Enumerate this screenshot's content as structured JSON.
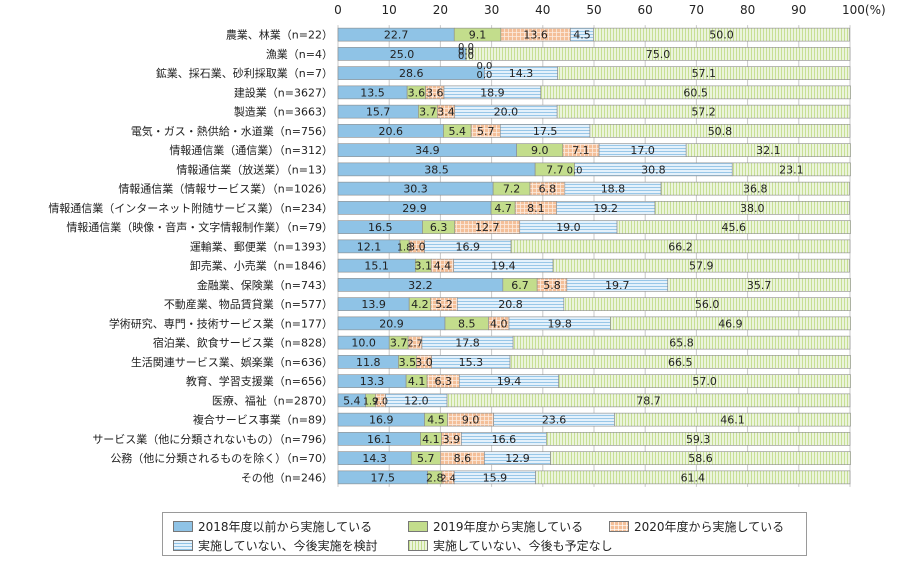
{
  "colors": {
    "s0": "#8fc3e6",
    "s1": "#c3dd8c",
    "s2": "#f4bf98",
    "s3": "#e4f1fb",
    "s4": "#ebf4dc",
    "grid": "#c8c8c8",
    "stroke": "#8a8a8a"
  },
  "chart_data": {
    "type": "bar",
    "orientation": "horizontal",
    "stacked": true,
    "unit_label": "100(%)",
    "xlim": [
      0,
      100
    ],
    "x_ticks": [
      "0",
      "10",
      "20",
      "30",
      "40",
      "50",
      "60",
      "70",
      "80",
      "90"
    ],
    "grid": true,
    "legend_position": "bottom",
    "categories": [
      "農業、林業（n=22）",
      "漁業（n=4）",
      "鉱業、採石業、砂利採取業（n=7）",
      "建設業（n=3627）",
      "製造業（n=3663）",
      "電気・ガス・熱供給・水道業（n=756）",
      "情報通信業（通信業）（n=312）",
      "情報通信業（放送業）（n=13）",
      "情報通信業（情報サービス業）（n=1026）",
      "情報通信業（インターネット附随サービス業）（n=234）",
      "情報通信業（映像・音声・文字情報制作業）（n=79）",
      "運輸業、郵便業（n=1393）",
      "卸売業、小売業（n=1846）",
      "金融業、保険業（n=743）",
      "不動産業、物品賃貸業（n=577）",
      "学術研究、専門・技術サービス業（n=177）",
      "宿泊業、飲食サービス業（n=828）",
      "生活関連サービス業、娯楽業（n=636）",
      "教育、学習支援業（n=656）",
      "医療、福祉（n=2870）",
      "複合サービス事業（n=89）",
      "サービス業（他に分類されないもの）（n=796）",
      "公務（他に分類されるものを除く）（n=70）",
      "その他（n=246）"
    ],
    "series": [
      {
        "name": "2018年度以前から実施している",
        "pattern": "solid",
        "values": [
          22.7,
          25.0,
          28.6,
          13.5,
          15.7,
          20.6,
          34.9,
          38.5,
          30.3,
          29.9,
          16.5,
          12.1,
          15.1,
          32.2,
          13.9,
          20.9,
          10.0,
          11.8,
          13.3,
          5.4,
          16.9,
          16.1,
          14.3,
          17.5
        ]
      },
      {
        "name": "2019年度から実施している",
        "pattern": "solid",
        "values": [
          9.1,
          0.0,
          0.0,
          3.6,
          3.7,
          5.4,
          9.0,
          7.7,
          7.2,
          4.7,
          6.3,
          1.8,
          3.1,
          6.7,
          4.2,
          8.5,
          3.7,
          3.5,
          4.1,
          1.9,
          4.5,
          4.1,
          5.7,
          2.8
        ]
      },
      {
        "name": "2020年度から実施している",
        "pattern": "grid",
        "values": [
          13.6,
          0.0,
          0.0,
          3.6,
          3.4,
          5.7,
          7.1,
          0.0,
          6.8,
          8.1,
          12.7,
          3.0,
          4.4,
          5.8,
          5.2,
          4.0,
          2.7,
          3.0,
          6.3,
          2.0,
          9.0,
          3.9,
          8.6,
          2.4
        ]
      },
      {
        "name": "実施していない、今後実施を検討",
        "pattern": "hlines",
        "values": [
          4.5,
          0.0,
          14.3,
          18.9,
          20.0,
          17.5,
          17.0,
          30.8,
          18.8,
          19.2,
          19.0,
          16.9,
          19.4,
          19.7,
          20.8,
          19.8,
          17.8,
          15.3,
          19.4,
          12.0,
          23.6,
          16.6,
          12.9,
          15.9
        ]
      },
      {
        "name": "実施していない、今後も予定なし",
        "pattern": "vlines",
        "values": [
          50.0,
          75.0,
          57.1,
          60.5,
          57.2,
          50.8,
          32.1,
          23.1,
          36.8,
          38.0,
          45.6,
          66.2,
          57.9,
          35.7,
          56.0,
          46.9,
          65.8,
          66.5,
          57.0,
          78.7,
          46.1,
          59.3,
          58.6,
          61.4
        ]
      }
    ],
    "data_labels": [
      [
        "22.7",
        "9.1",
        "13.6",
        "4.5",
        "50.0"
      ],
      [
        "25.0",
        "0.0",
        "0.0",
        "0.0",
        "75.0"
      ],
      [
        "28.6",
        "0.0",
        "0.0",
        "14.3",
        "57.1"
      ],
      [
        "13.5",
        "3.6",
        "3.6",
        "18.9",
        "60.5"
      ],
      [
        "15.7",
        "3.7",
        "3.4",
        "20.0",
        "57.2"
      ],
      [
        "20.6",
        "5.4",
        "5.7",
        "17.5",
        "50.8"
      ],
      [
        "34.9",
        "9.0",
        "7.1",
        "17.0",
        "32.1"
      ],
      [
        "38.5",
        "7.7",
        "0.0",
        "30.8",
        "23.1"
      ],
      [
        "30.3",
        "7.2",
        "6.8",
        "18.8",
        "36.8"
      ],
      [
        "29.9",
        "4.7",
        "8.1",
        "19.2",
        "38.0"
      ],
      [
        "16.5",
        "6.3",
        "12.7",
        "19.0",
        "45.6"
      ],
      [
        "12.1",
        "1.8",
        "3.0",
        "16.9",
        "66.2"
      ],
      [
        "15.1",
        "3.1",
        "4.4",
        "19.4",
        "57.9"
      ],
      [
        "32.2",
        "6.7",
        "5.8",
        "19.7",
        "35.7"
      ],
      [
        "13.9",
        "4.2",
        "5.2",
        "20.8",
        "56.0"
      ],
      [
        "20.9",
        "8.5",
        "4.0",
        "19.8",
        "46.9"
      ],
      [
        "10.0",
        "3.7",
        "2.7",
        "17.8",
        "65.8"
      ],
      [
        "11.8",
        "3.5",
        "3.0",
        "15.3",
        "66.5"
      ],
      [
        "13.3",
        "4.1",
        "6.3",
        "19.4",
        "57.0"
      ],
      [
        "5.4",
        "1.9",
        "2.0",
        "12.0",
        "78.7"
      ],
      [
        "16.9",
        "4.5",
        "9.0",
        "23.6",
        "46.1"
      ],
      [
        "16.1",
        "4.1",
        "3.9",
        "16.6",
        "59.3"
      ],
      [
        "14.3",
        "5.7",
        "8.6",
        "12.9",
        "58.6"
      ],
      [
        "17.5",
        "2.8",
        "2.4",
        "15.9",
        "61.4"
      ]
    ]
  }
}
